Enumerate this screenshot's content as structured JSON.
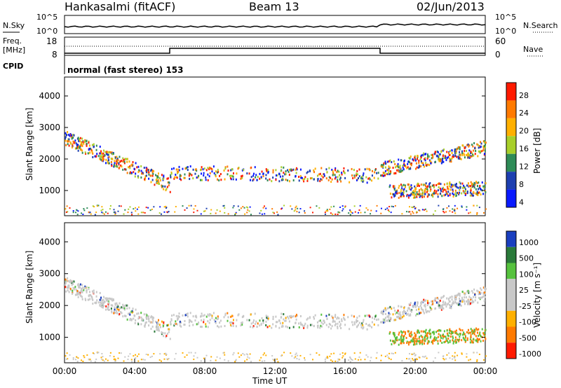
{
  "header": {
    "station": "Hankasalmi (fitACF)",
    "beam": "Beam 13",
    "date": "02/Jun/2013"
  },
  "noise_panel": {
    "left_label": "N.Sky",
    "right_label": "N.Search",
    "tick_top": "10^5",
    "tick_bottom": "10^0",
    "line_color": "#000000"
  },
  "freq_panel": {
    "left_label_1": "Freq.",
    "left_label_2": "[MHz]",
    "right_label": "Nave",
    "left_ticks": [
      "18",
      "8"
    ],
    "right_ticks": [
      "60",
      "0"
    ]
  },
  "cpid": {
    "label": "CPID",
    "program": "normal (fast stereo) 153"
  },
  "chart_data": [
    {
      "type": "heatmap",
      "name": "power",
      "ylabel": "Slant Range [km]",
      "yticks": [
        "4000",
        "3000",
        "2000",
        "1000"
      ],
      "ylim": [
        200,
        4600
      ],
      "colorbar_label": "Power [dB]",
      "colorbar_ticks": [
        "28",
        "24",
        "20",
        "16",
        "12",
        "8",
        "4"
      ],
      "colorbar_colors": [
        "#ff1a00",
        "#ff7a00",
        "#ffb000",
        "#a8cf2a",
        "#2e8b57",
        "#1d3fb0",
        "#0a1aff"
      ],
      "xlim": [
        "00:00",
        "24:00"
      ],
      "echo_bands": [
        {
          "t0": 0.0,
          "t1": 6.0,
          "r0": 2700,
          "r1": 1200
        },
        {
          "t0": 6.0,
          "t1": 18.0,
          "r0": 1600,
          "r1": 1500
        },
        {
          "t0": 18.0,
          "t1": 24.0,
          "r0": 1700,
          "r1": 2400
        },
        {
          "t0": 18.5,
          "t1": 24.0,
          "r0": 1000,
          "r1": 1100
        }
      ]
    },
    {
      "type": "heatmap",
      "name": "velocity",
      "ylabel": "Slant Range [km]",
      "yticks": [
        "4000",
        "3000",
        "2000",
        "1000"
      ],
      "ylim": [
        200,
        4600
      ],
      "colorbar_label": "Velocity [m s⁻¹]",
      "colorbar_ticks": [
        "1000",
        "500",
        "100",
        "25",
        "-25",
        "-100",
        "-500",
        "-1000"
      ],
      "colorbar_colors": [
        "#1a3fbf",
        "#2a7a3a",
        "#56c23e",
        "#c8c8c8",
        "#c8c8c8",
        "#ffb000",
        "#ff7a00",
        "#ff1a00"
      ],
      "xlim": [
        "00:00",
        "24:00"
      ],
      "xticks": [
        "00:00",
        "04:00",
        "08:00",
        "12:00",
        "16:00",
        "20:00",
        "00:00"
      ],
      "xlabel": "Time UT"
    }
  ]
}
